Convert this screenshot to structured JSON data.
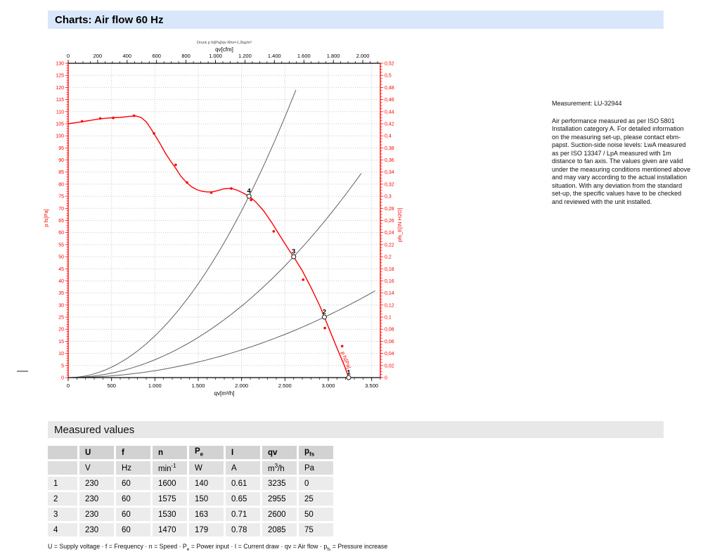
{
  "page": {
    "title": "Charts: Air flow 60 Hz"
  },
  "measurement_note": {
    "title": "Measurement: LU-32944",
    "body": "Air performance measured as per ISO 5801 Installation category A. For detailed information on the measuring set-up, please contact ebm-papst. Suction-side noise levels: LwA measured as per ISO 13347 / LpA measured with 1m distance to fan axis. The values given are valid under the measuring conditions mentioned above and may vary according to the actual installation situation. With any deviation from the standard set-up, the specific values have to be checked and reviewed with the unit installed."
  },
  "measured_values": {
    "section_title": "Measured values",
    "columns": [
      {
        "label_segments": [
          {
            "t": ""
          }
        ],
        "unit_segments": [
          {
            "t": ""
          }
        ]
      },
      {
        "label_segments": [
          {
            "t": "U"
          }
        ],
        "unit_segments": [
          {
            "t": "V"
          }
        ]
      },
      {
        "label_segments": [
          {
            "t": "f"
          }
        ],
        "unit_segments": [
          {
            "t": "Hz"
          }
        ]
      },
      {
        "label_segments": [
          {
            "t": "n"
          }
        ],
        "unit_segments": [
          {
            "t": "min"
          },
          {
            "sup": "-1"
          }
        ]
      },
      {
        "label_segments": [
          {
            "t": "P"
          },
          {
            "sub": "e"
          }
        ],
        "unit_segments": [
          {
            "t": "W"
          }
        ]
      },
      {
        "label_segments": [
          {
            "t": "I"
          }
        ],
        "unit_segments": [
          {
            "t": "A"
          }
        ]
      },
      {
        "label_segments": [
          {
            "t": "qv"
          }
        ],
        "unit_segments": [
          {
            "t": "m"
          },
          {
            "sup": "3"
          },
          {
            "t": "/h"
          }
        ]
      },
      {
        "label_segments": [
          {
            "t": "p"
          },
          {
            "sub": "fs"
          }
        ],
        "unit_segments": [
          {
            "t": "Pa"
          }
        ]
      }
    ],
    "rows": [
      [
        "1",
        "230",
        "60",
        "1600",
        "140",
        "0.61",
        "3235",
        "0"
      ],
      [
        "2",
        "230",
        "60",
        "1575",
        "150",
        "0.65",
        "2955",
        "25"
      ],
      [
        "3",
        "230",
        "60",
        "1530",
        "163",
        "0.71",
        "2600",
        "50"
      ],
      [
        "4",
        "230",
        "60",
        "1470",
        "179",
        "0.78",
        "2085",
        "75"
      ]
    ],
    "footnote_segments": [
      {
        "t": "U = Supply voltage · f = Frequency · n = Speed · P"
      },
      {
        "sub": "e"
      },
      {
        "t": " = Power input · I = Current draw · qv = Air flow · p"
      },
      {
        "sub": "fs"
      },
      {
        "t": " = Pressure increase"
      }
    ]
  },
  "chart_data": {
    "type": "line",
    "title_small": "Druck p fs[Pa]/qv Rho=1,2kg/m³",
    "axes": {
      "top": {
        "label": "qv[cfm]",
        "min": 0,
        "max": 2119,
        "major_step": 200,
        "minor_step": 50,
        "labels": [
          "0",
          "200",
          "400",
          "600",
          "800",
          "1.000",
          "1.200",
          "1.400",
          "1.600",
          "1.800",
          "2.000"
        ]
      },
      "bottom": {
        "label": "qv[m³/h]",
        "min": 0,
        "max": 3600,
        "major_step": 500,
        "minor_step": 100,
        "labels": [
          "0",
          "500",
          "1.000",
          "1.500",
          "2.000",
          "2.500",
          "3.000",
          "3.500"
        ]
      },
      "left": {
        "label": "p fs[Pa]",
        "min": 0,
        "max": 130,
        "major_step": 5,
        "minor_step": 1
      },
      "right": {
        "label": "pfs_E[IN H2O]",
        "min": 0,
        "max": 0.52,
        "major_step": 0.02,
        "minor_step": 0.005
      }
    },
    "colors": {
      "accent": "#ff0000",
      "system_curve": "#606060",
      "grid": "#c9c9c9",
      "axis_black": "#000000"
    },
    "grid": true,
    "fan_curve": [
      [
        0,
        105
      ],
      [
        120,
        105.6
      ],
      [
        240,
        106.3
      ],
      [
        360,
        107
      ],
      [
        480,
        107.4
      ],
      [
        600,
        107.6
      ],
      [
        700,
        108
      ],
      [
        780,
        108.2
      ],
      [
        840,
        107.6
      ],
      [
        900,
        105.8
      ],
      [
        950,
        103.2
      ],
      [
        1000,
        100.3
      ],
      [
        1060,
        96.8
      ],
      [
        1120,
        92.9
      ],
      [
        1180,
        89.6
      ],
      [
        1240,
        86.6
      ],
      [
        1300,
        83.3
      ],
      [
        1360,
        80.9
      ],
      [
        1420,
        79
      ],
      [
        1480,
        77.8
      ],
      [
        1540,
        77.1
      ],
      [
        1600,
        76.8
      ],
      [
        1660,
        76.8
      ],
      [
        1720,
        77.3
      ],
      [
        1800,
        78.1
      ],
      [
        1880,
        78.3
      ],
      [
        1950,
        77.5
      ],
      [
        2020,
        76.3
      ],
      [
        2085,
        75
      ],
      [
        2160,
        72.8
      ],
      [
        2250,
        69.2
      ],
      [
        2350,
        64
      ],
      [
        2450,
        58.2
      ],
      [
        2550,
        52.6
      ],
      [
        2600,
        50
      ],
      [
        2700,
        44.2
      ],
      [
        2800,
        37.3
      ],
      [
        2900,
        29.8
      ],
      [
        2955,
        25
      ],
      [
        3040,
        17.5
      ],
      [
        3120,
        10.5
      ],
      [
        3185,
        5
      ],
      [
        3235,
        0
      ]
    ],
    "measured_dots": [
      [
        160,
        106
      ],
      [
        370,
        107.2
      ],
      [
        520,
        107.4
      ],
      [
        760,
        108.3
      ],
      [
        990,
        101
      ],
      [
        1240,
        88
      ],
      [
        1370,
        80.7
      ],
      [
        1650,
        76.5
      ],
      [
        1880,
        78.2
      ],
      [
        2110,
        73.5
      ],
      [
        2370,
        60.5
      ],
      [
        2710,
        40.5
      ],
      [
        2960,
        20.5
      ],
      [
        3160,
        13
      ]
    ],
    "system_curves": [
      {
        "k": 1.72524e-05,
        "qv_end": 2626
      },
      {
        "k": 7.3964e-06,
        "qv_end": 3380
      },
      {
        "k": 2.863e-06,
        "qv_end": 3540
      }
    ],
    "operating_points": [
      {
        "label": "4",
        "qv": 2085,
        "p": 75
      },
      {
        "label": "3",
        "qv": 2600,
        "p": 50
      },
      {
        "label": "2",
        "qv": 2955,
        "p": 25
      },
      {
        "label": "1",
        "qv": 3235,
        "p": 0
      }
    ],
    "curve_label": {
      "text": "p fs[Pa]",
      "qv": 3185,
      "p": 7,
      "angle": 68
    }
  }
}
